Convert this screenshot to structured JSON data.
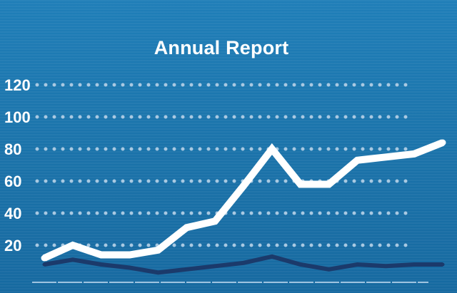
{
  "chart_data": {
    "type": "line",
    "title": "Annual Report",
    "xlabel": "",
    "ylabel": "",
    "ylim": [
      0,
      120
    ],
    "yticks": [
      "20",
      "40",
      "60",
      "80",
      "100",
      "120"
    ],
    "grid": true,
    "x": [
      1,
      2,
      3,
      4,
      5,
      6,
      7,
      8,
      9,
      10,
      11,
      12,
      13,
      14,
      15
    ],
    "series": [
      {
        "values": [
          12,
          20,
          14,
          14,
          17,
          31,
          35,
          57,
          80,
          58,
          58,
          73,
          75,
          77,
          84
        ],
        "color": "#ffffff"
      },
      {
        "values": [
          8,
          11,
          8,
          6,
          3,
          5,
          7,
          9,
          13,
          8,
          5,
          8,
          7,
          8,
          8
        ],
        "color": "#1b3a6b"
      }
    ],
    "background": "#1a74ad",
    "gridColor": "#a9c9e2"
  }
}
